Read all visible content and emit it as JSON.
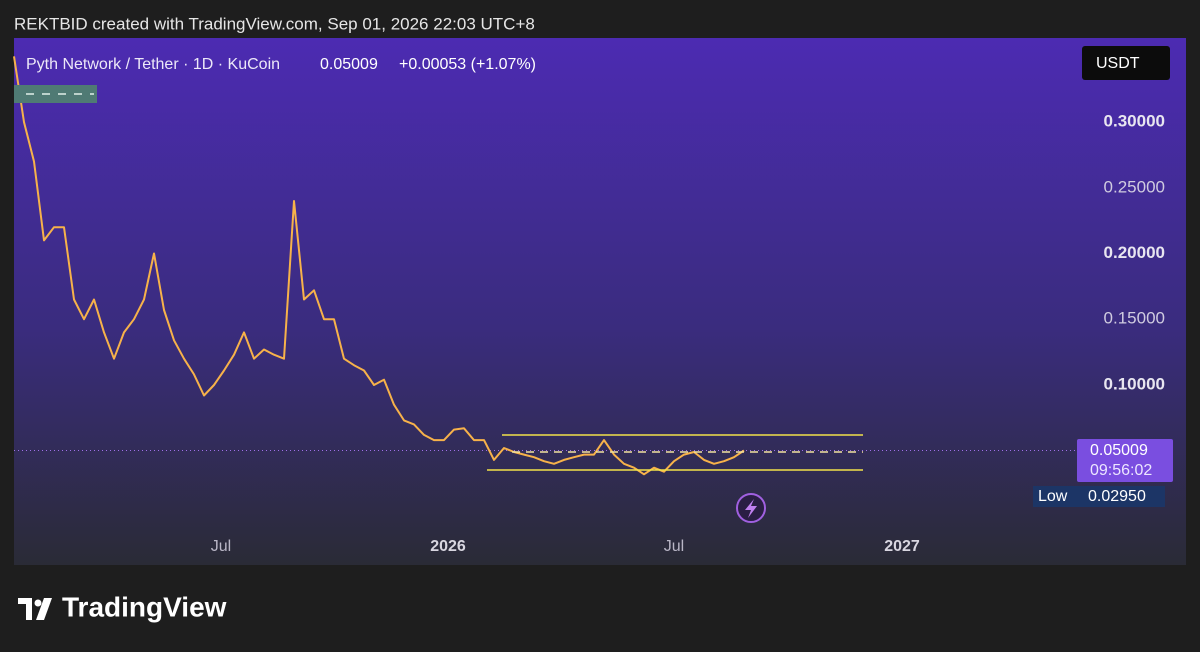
{
  "chart_data": {
    "type": "line",
    "credit": "REKTBID created with TradingView.com, Sep 01, 2026 22:03 UTC+8",
    "title": "Pyth Network / Tether · 1D · KuCoin",
    "change": "+0.00053 (+1.07%)",
    "currency": "USDT",
    "countdown": "09:56:02",
    "low_label": "Low",
    "low_price": "0.02950",
    "brand": "TradingView",
    "color": "#f7b24a",
    "values": [
      0.35,
      0.3,
      0.27,
      0.21,
      0.22,
      0.22,
      0.165,
      0.15,
      0.165,
      0.14,
      0.12,
      0.14,
      0.15,
      0.165,
      0.2,
      0.157,
      0.134,
      0.12,
      0.108,
      0.092,
      0.1,
      0.111,
      0.123,
      0.14,
      0.12,
      0.127,
      0.123,
      0.12,
      0.24,
      0.165,
      0.172,
      0.15,
      0.15,
      0.12,
      0.115,
      0.111,
      0.1,
      0.104,
      0.085,
      0.073,
      0.07,
      0.062,
      0.058,
      0.058,
      0.066,
      0.067,
      0.058,
      0.058,
      0.043,
      0.052,
      0.049,
      0.047,
      0.045,
      0.042,
      0.04,
      0.043,
      0.045,
      0.047,
      0.047,
      0.058,
      0.047,
      0.04,
      0.037,
      0.032,
      0.037,
      0.034,
      0.042,
      0.047,
      0.049,
      0.043,
      0.04,
      0.042,
      0.045,
      0.05009
    ],
    "xlim": [
      0,
      117.2
    ],
    "xticks": [
      {
        "value": 20.7,
        "label": "Jul"
      },
      {
        "value": 43.4,
        "label": "2026"
      },
      {
        "value": 66,
        "label": "Jul"
      },
      {
        "value": 88.8,
        "label": "2027"
      }
    ],
    "ylim": [
      -0.037,
      0.364
    ],
    "yticks": [
      {
        "value": 0.3,
        "label": "0.30000"
      },
      {
        "value": 0.25,
        "label": "0.25000"
      },
      {
        "value": 0.2,
        "label": "0.20000"
      },
      {
        "value": 0.15,
        "label": "0.15000"
      },
      {
        "value": 0.1,
        "label": "0.10000"
      }
    ],
    "grid": false
  }
}
